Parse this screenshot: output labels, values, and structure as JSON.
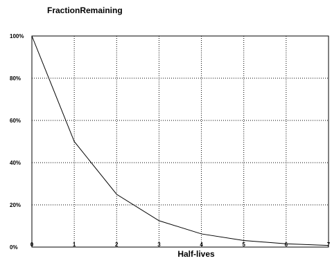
{
  "chart_data": {
    "type": "line",
    "title": "FractionRemaining",
    "xlabel": "Half-lives",
    "ylabel": "",
    "x": [
      0,
      1,
      2,
      3,
      4,
      5,
      6,
      7
    ],
    "series": [
      {
        "values": [
          100,
          50,
          25,
          12.5,
          6.25,
          3.125,
          1.5625,
          0.78125
        ]
      }
    ],
    "xlim": [
      0,
      7
    ],
    "ylim": [
      0,
      100
    ],
    "xticks": [
      "0",
      "1",
      "2",
      "3",
      "4",
      "5",
      "6",
      "7"
    ],
    "yticks": [
      "0%",
      "20%",
      "40%",
      "60%",
      "80%",
      "100%"
    ],
    "ytick_values": [
      0,
      20,
      40,
      60,
      80,
      100
    ],
    "grid": true,
    "line_color": "#000000",
    "grid_color": "#000000"
  }
}
